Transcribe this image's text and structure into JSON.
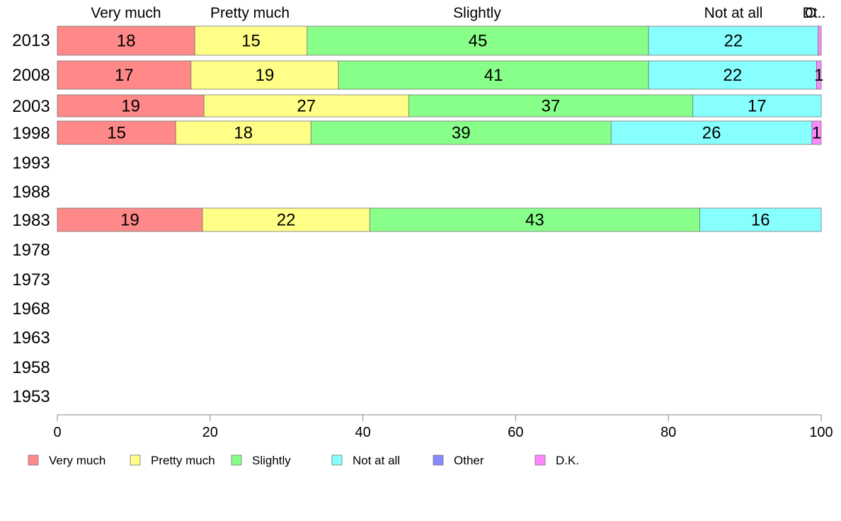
{
  "chart_data": {
    "type": "bar",
    "orientation": "horizontal",
    "stacked": true,
    "xlim": [
      0,
      100
    ],
    "x_ticks": [
      "0",
      "20",
      "40",
      "60",
      "80",
      "100"
    ],
    "grid": false,
    "legend_position": "bottom",
    "top_labels": [
      "Very much",
      "Pretty much",
      "Slightly",
      "Not at all",
      "O",
      "Dt.."
    ],
    "categories": [
      "2013",
      "2008",
      "2003",
      "1998",
      "1993",
      "1988",
      "1983",
      "1978",
      "1973",
      "1968",
      "1963",
      "1958",
      "1953"
    ],
    "series": [
      {
        "name": "Very much",
        "color": "#ff8888",
        "values": [
          18,
          17.5,
          19.2,
          15.5,
          null,
          null,
          19,
          null,
          null,
          null,
          null,
          null,
          null
        ],
        "labels": [
          "18",
          "17",
          "19",
          "15",
          "",
          "",
          "19",
          "",
          "",
          "",
          "",
          "",
          ""
        ]
      },
      {
        "name": "Pretty much",
        "color": "#ffff88",
        "values": [
          14.7,
          19.3,
          26.8,
          17.7,
          null,
          null,
          21.9,
          null,
          null,
          null,
          null,
          null,
          null
        ],
        "labels": [
          "15",
          "19",
          "27",
          "18",
          "",
          "",
          "22",
          "",
          "",
          "",
          "",
          "",
          ""
        ]
      },
      {
        "name": "Slightly",
        "color": "#88ff88",
        "values": [
          44.7,
          40.6,
          37.2,
          39.3,
          null,
          null,
          43.2,
          null,
          null,
          null,
          null,
          null,
          null
        ],
        "labels": [
          "45",
          "41",
          "37",
          "39",
          "",
          "",
          "43",
          "",
          "",
          "",
          "",
          "",
          ""
        ]
      },
      {
        "name": "Not at all",
        "color": "#88ffff",
        "values": [
          22.2,
          22.0,
          16.8,
          26.3,
          null,
          null,
          15.9,
          null,
          null,
          null,
          null,
          null,
          null
        ],
        "labels": [
          "22",
          "22",
          "17",
          "26",
          "",
          "",
          "16",
          "",
          "",
          "",
          "",
          "",
          ""
        ]
      },
      {
        "name": "Other",
        "color": "#8888ff",
        "values": [
          0,
          0,
          0,
          0,
          null,
          null,
          0,
          null,
          null,
          null,
          null,
          null,
          null
        ],
        "labels": [
          "",
          "",
          "",
          "",
          "",
          "",
          "",
          "",
          "",
          "",
          "",
          "",
          ""
        ]
      },
      {
        "name": "D.K.",
        "color": "#ff88ff",
        "values": [
          0.4,
          0.6,
          0,
          1.2,
          null,
          null,
          0,
          null,
          null,
          null,
          null,
          null,
          null
        ],
        "labels": [
          "",
          "1",
          "",
          "1",
          "",
          "",
          "",
          "",
          "",
          "",
          "",
          "",
          ""
        ]
      }
    ]
  }
}
